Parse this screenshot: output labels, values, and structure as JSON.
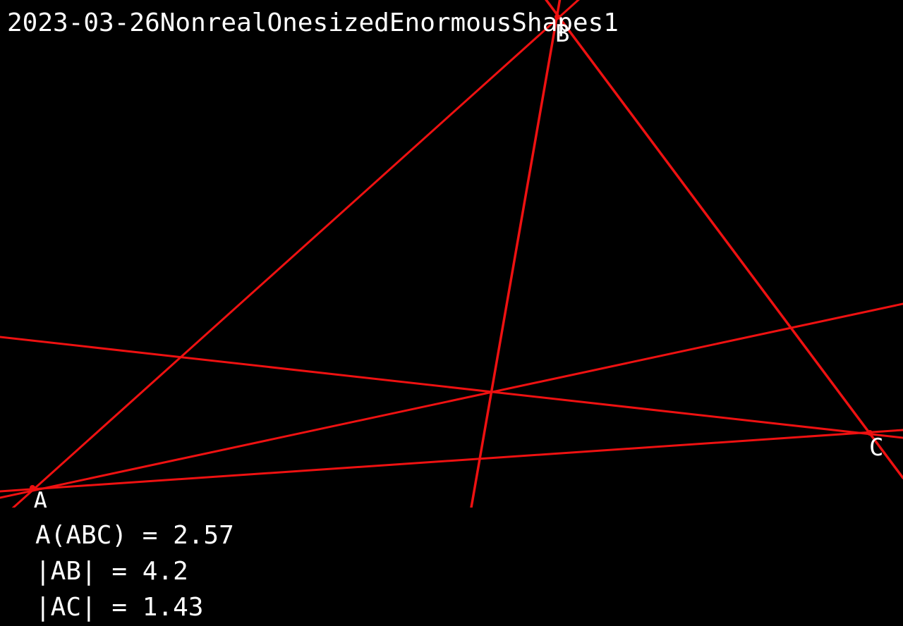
{
  "title": "2023-03-26NonrealOnesizedEnormousShapes1",
  "line_color": "#ee1111",
  "background": "#000000",
  "text_color": "#ffffff",
  "vertices": {
    "A": "A",
    "B": "B",
    "C": "C"
  },
  "measurements": {
    "area": "A(ABC) = 2.57",
    "ab": "|AB| = 4.2",
    "ac": "|AC| = 1.43"
  }
}
